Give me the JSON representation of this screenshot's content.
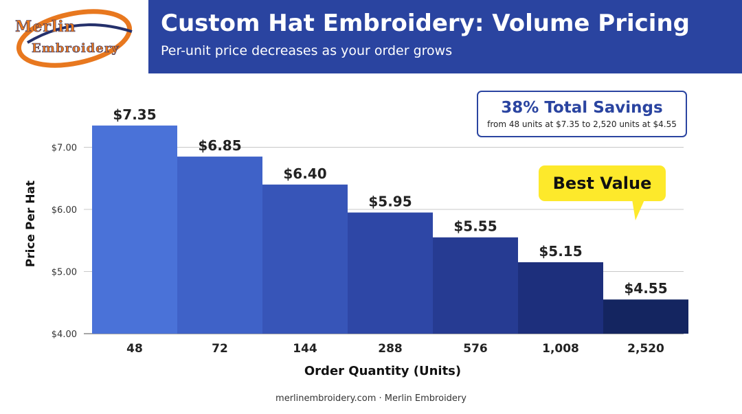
{
  "logo": {
    "line1": "Merlin",
    "line2": "Embroidery"
  },
  "header": {
    "title": "Custom Hat Embroidery: Volume Pricing",
    "subtitle": "Per-unit price decreases as your order grows"
  },
  "savings": {
    "title": "38% Total Savings",
    "detail": "from 48 units at $7.35 to 2,520 units at $4.55"
  },
  "callout": {
    "label": "Best Value"
  },
  "footer": {
    "text": "merlinembroidery.com · Merlin Embroidery"
  },
  "chart_data": {
    "type": "bar",
    "title": "Custom Hat Embroidery: Volume Pricing",
    "subtitle": "Per-unit price decreases as your order grows",
    "xlabel": "Order Quantity (Units)",
    "ylabel": "Price Per Hat",
    "categories": [
      "48",
      "72",
      "144",
      "288",
      "576",
      "1,008",
      "2,520"
    ],
    "values": [
      7.35,
      6.85,
      6.4,
      5.95,
      5.55,
      5.15,
      4.55
    ],
    "value_labels": [
      "$7.35",
      "$6.85",
      "$6.40",
      "$5.95",
      "$5.55",
      "$5.15",
      "$4.55"
    ],
    "ylim": [
      4.0,
      7.4
    ],
    "yticks": [
      4.0,
      5.0,
      6.0,
      7.0
    ],
    "ytick_labels": [
      "$4.00",
      "$5.00",
      "$6.00",
      "$7.00"
    ],
    "grid": true,
    "legend": "none",
    "colors": [
      "#4a72d8",
      "#3f62c8",
      "#3755b8",
      "#2e47a6",
      "#263b92",
      "#1d2f7c",
      "#142560"
    ]
  }
}
